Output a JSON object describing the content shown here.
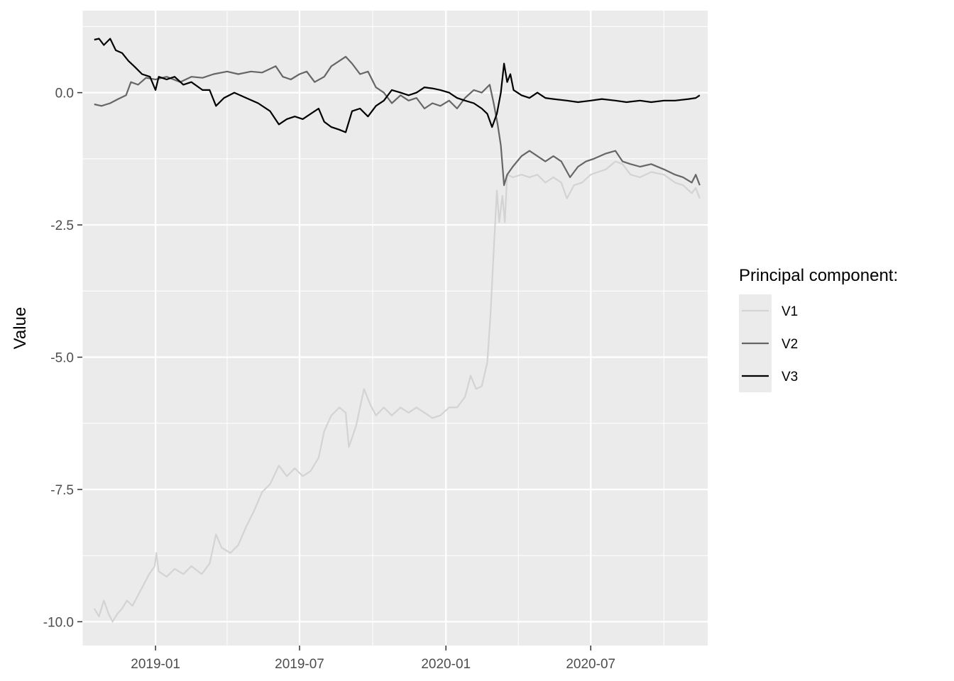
{
  "chart_data": {
    "type": "line",
    "xlabel": "",
    "ylabel": "Value",
    "x_range": [
      "2018-10-01",
      "2020-11-25"
    ],
    "ylim": [
      -10.45,
      1.55
    ],
    "x_ticks": [
      {
        "date": "2019-01-01",
        "label": "2019-01"
      },
      {
        "date": "2019-07-01",
        "label": "2019-07"
      },
      {
        "date": "2020-01-01",
        "label": "2020-01"
      },
      {
        "date": "2020-07-01",
        "label": "2020-07"
      }
    ],
    "x_minor_ticks": [
      "2018-10-01",
      "2019-04-01",
      "2019-10-01",
      "2020-04-01",
      "2020-10-01"
    ],
    "y_ticks": [
      {
        "value": 0,
        "label": "0.0"
      },
      {
        "value": -2.5,
        "label": "-2.5"
      },
      {
        "value": -5,
        "label": "-5.0"
      },
      {
        "value": -7.5,
        "label": "-7.5"
      },
      {
        "value": -10,
        "label": "-10.0"
      }
    ],
    "y_minor_ticks": [
      1.25,
      -1.25,
      -3.75,
      -6.25,
      -8.75
    ],
    "grid": true,
    "legend": {
      "title": "Principal component:",
      "position": "right"
    },
    "series": [
      {
        "name": "V1",
        "color": "#d3d3d3",
        "points": [
          [
            "2018-10-16",
            -9.75
          ],
          [
            "2018-10-22",
            -9.9
          ],
          [
            "2018-10-28",
            -9.6
          ],
          [
            "2018-11-03",
            -9.85
          ],
          [
            "2018-11-08",
            -10.0
          ],
          [
            "2018-11-14",
            -9.85
          ],
          [
            "2018-11-20",
            -9.75
          ],
          [
            "2018-11-26",
            -9.6
          ],
          [
            "2018-12-03",
            -9.7
          ],
          [
            "2018-12-10",
            -9.5
          ],
          [
            "2018-12-17",
            -9.3
          ],
          [
            "2018-12-24",
            -9.1
          ],
          [
            "2018-12-31",
            -8.95
          ],
          [
            "2019-01-02",
            -8.7
          ],
          [
            "2019-01-05",
            -9.05
          ],
          [
            "2019-01-15",
            -9.15
          ],
          [
            "2019-01-25",
            -9.0
          ],
          [
            "2019-02-05",
            -9.1
          ],
          [
            "2019-02-15",
            -8.95
          ],
          [
            "2019-02-28",
            -9.1
          ],
          [
            "2019-03-10",
            -8.9
          ],
          [
            "2019-03-18",
            -8.35
          ],
          [
            "2019-03-25",
            -8.6
          ],
          [
            "2019-04-05",
            -8.7
          ],
          [
            "2019-04-15",
            -8.55
          ],
          [
            "2019-04-25",
            -8.2
          ],
          [
            "2019-05-05",
            -7.9
          ],
          [
            "2019-05-15",
            -7.55
          ],
          [
            "2019-05-25",
            -7.4
          ],
          [
            "2019-06-05",
            -7.05
          ],
          [
            "2019-06-15",
            -7.25
          ],
          [
            "2019-06-25",
            -7.1
          ],
          [
            "2019-07-05",
            -7.25
          ],
          [
            "2019-07-15",
            -7.15
          ],
          [
            "2019-07-25",
            -6.9
          ],
          [
            "2019-08-01",
            -6.4
          ],
          [
            "2019-08-10",
            -6.1
          ],
          [
            "2019-08-20",
            -5.95
          ],
          [
            "2019-08-28",
            -6.05
          ],
          [
            "2019-09-01",
            -6.7
          ],
          [
            "2019-09-10",
            -6.3
          ],
          [
            "2019-09-20",
            -5.6
          ],
          [
            "2019-09-28",
            -5.9
          ],
          [
            "2019-10-05",
            -6.1
          ],
          [
            "2019-10-15",
            -5.95
          ],
          [
            "2019-10-25",
            -6.1
          ],
          [
            "2019-11-05",
            -5.95
          ],
          [
            "2019-11-15",
            -6.05
          ],
          [
            "2019-11-25",
            -5.95
          ],
          [
            "2019-12-05",
            -6.05
          ],
          [
            "2019-12-15",
            -6.15
          ],
          [
            "2019-12-25",
            -6.1
          ],
          [
            "2020-01-05",
            -5.95
          ],
          [
            "2020-01-15",
            -5.95
          ],
          [
            "2020-01-25",
            -5.75
          ],
          [
            "2020-02-01",
            -5.35
          ],
          [
            "2020-02-08",
            -5.6
          ],
          [
            "2020-02-15",
            -5.55
          ],
          [
            "2020-02-22",
            -5.1
          ],
          [
            "2020-02-26",
            -4.2
          ],
          [
            "2020-03-01",
            -3.0
          ],
          [
            "2020-03-05",
            -1.85
          ],
          [
            "2020-03-08",
            -2.45
          ],
          [
            "2020-03-12",
            -1.95
          ],
          [
            "2020-03-15",
            -2.45
          ],
          [
            "2020-03-18",
            -1.55
          ],
          [
            "2020-03-25",
            -1.6
          ],
          [
            "2020-04-05",
            -1.55
          ],
          [
            "2020-04-15",
            -1.6
          ],
          [
            "2020-04-25",
            -1.55
          ],
          [
            "2020-05-05",
            -1.7
          ],
          [
            "2020-05-15",
            -1.6
          ],
          [
            "2020-05-25",
            -1.7
          ],
          [
            "2020-06-01",
            -2.0
          ],
          [
            "2020-06-10",
            -1.75
          ],
          [
            "2020-06-20",
            -1.7
          ],
          [
            "2020-07-01",
            -1.55
          ],
          [
            "2020-07-10",
            -1.5
          ],
          [
            "2020-07-20",
            -1.45
          ],
          [
            "2020-08-01",
            -1.3
          ],
          [
            "2020-08-10",
            -1.35
          ],
          [
            "2020-08-20",
            -1.55
          ],
          [
            "2020-09-01",
            -1.6
          ],
          [
            "2020-09-15",
            -1.5
          ],
          [
            "2020-10-01",
            -1.55
          ],
          [
            "2020-10-15",
            -1.7
          ],
          [
            "2020-10-25",
            -1.75
          ],
          [
            "2020-11-05",
            -1.9
          ],
          [
            "2020-11-10",
            -1.8
          ],
          [
            "2020-11-15",
            -2.0
          ]
        ]
      },
      {
        "name": "V2",
        "color": "#666666",
        "points": [
          [
            "2018-10-16",
            -0.22
          ],
          [
            "2018-10-25",
            -0.25
          ],
          [
            "2018-11-05",
            -0.2
          ],
          [
            "2018-11-15",
            -0.12
          ],
          [
            "2018-11-25",
            -0.05
          ],
          [
            "2018-12-01",
            0.2
          ],
          [
            "2018-12-10",
            0.15
          ],
          [
            "2018-12-20",
            0.28
          ],
          [
            "2019-01-01",
            0.25
          ],
          [
            "2019-01-15",
            0.3
          ],
          [
            "2019-02-01",
            0.2
          ],
          [
            "2019-02-15",
            0.3
          ],
          [
            "2019-03-01",
            0.28
          ],
          [
            "2019-03-15",
            0.35
          ],
          [
            "2019-04-01",
            0.4
          ],
          [
            "2019-04-15",
            0.35
          ],
          [
            "2019-05-01",
            0.4
          ],
          [
            "2019-05-15",
            0.38
          ],
          [
            "2019-06-01",
            0.5
          ],
          [
            "2019-06-10",
            0.3
          ],
          [
            "2019-06-20",
            0.25
          ],
          [
            "2019-07-01",
            0.35
          ],
          [
            "2019-07-10",
            0.4
          ],
          [
            "2019-07-20",
            0.2
          ],
          [
            "2019-08-01",
            0.3
          ],
          [
            "2019-08-10",
            0.5
          ],
          [
            "2019-08-20",
            0.6
          ],
          [
            "2019-08-28",
            0.68
          ],
          [
            "2019-09-05",
            0.55
          ],
          [
            "2019-09-15",
            0.35
          ],
          [
            "2019-09-25",
            0.4
          ],
          [
            "2019-10-05",
            0.1
          ],
          [
            "2019-10-15",
            0.0
          ],
          [
            "2019-10-25",
            -0.2
          ],
          [
            "2019-11-05",
            -0.05
          ],
          [
            "2019-11-15",
            -0.15
          ],
          [
            "2019-11-25",
            -0.1
          ],
          [
            "2019-12-05",
            -0.3
          ],
          [
            "2019-12-15",
            -0.2
          ],
          [
            "2019-12-25",
            -0.25
          ],
          [
            "2020-01-05",
            -0.15
          ],
          [
            "2020-01-15",
            -0.3
          ],
          [
            "2020-01-25",
            -0.1
          ],
          [
            "2020-02-05",
            0.05
          ],
          [
            "2020-02-15",
            0.0
          ],
          [
            "2020-02-25",
            0.15
          ],
          [
            "2020-03-01",
            -0.2
          ],
          [
            "2020-03-06",
            -0.6
          ],
          [
            "2020-03-10",
            -1.0
          ],
          [
            "2020-03-14",
            -1.75
          ],
          [
            "2020-03-18",
            -1.55
          ],
          [
            "2020-03-25",
            -1.4
          ],
          [
            "2020-04-05",
            -1.2
          ],
          [
            "2020-04-15",
            -1.1
          ],
          [
            "2020-04-25",
            -1.2
          ],
          [
            "2020-05-05",
            -1.3
          ],
          [
            "2020-05-15",
            -1.2
          ],
          [
            "2020-05-25",
            -1.3
          ],
          [
            "2020-06-05",
            -1.6
          ],
          [
            "2020-06-15",
            -1.4
          ],
          [
            "2020-06-25",
            -1.3
          ],
          [
            "2020-07-05",
            -1.25
          ],
          [
            "2020-07-20",
            -1.15
          ],
          [
            "2020-08-01",
            -1.1
          ],
          [
            "2020-08-10",
            -1.3
          ],
          [
            "2020-08-20",
            -1.35
          ],
          [
            "2020-09-01",
            -1.4
          ],
          [
            "2020-09-15",
            -1.35
          ],
          [
            "2020-10-01",
            -1.45
          ],
          [
            "2020-10-15",
            -1.55
          ],
          [
            "2020-10-25",
            -1.6
          ],
          [
            "2020-11-05",
            -1.7
          ],
          [
            "2020-11-10",
            -1.55
          ],
          [
            "2020-11-15",
            -1.75
          ]
        ]
      },
      {
        "name": "V3",
        "color": "#000000",
        "points": [
          [
            "2018-10-16",
            1.0
          ],
          [
            "2018-10-22",
            1.02
          ],
          [
            "2018-10-28",
            0.9
          ],
          [
            "2018-11-05",
            1.02
          ],
          [
            "2018-11-12",
            0.8
          ],
          [
            "2018-11-20",
            0.75
          ],
          [
            "2018-11-28",
            0.6
          ],
          [
            "2018-12-05",
            0.5
          ],
          [
            "2018-12-15",
            0.35
          ],
          [
            "2018-12-25",
            0.3
          ],
          [
            "2019-01-01",
            0.05
          ],
          [
            "2019-01-05",
            0.3
          ],
          [
            "2019-01-15",
            0.25
          ],
          [
            "2019-01-25",
            0.3
          ],
          [
            "2019-02-05",
            0.15
          ],
          [
            "2019-02-15",
            0.2
          ],
          [
            "2019-03-01",
            0.05
          ],
          [
            "2019-03-10",
            0.05
          ],
          [
            "2019-03-18",
            -0.25
          ],
          [
            "2019-03-28",
            -0.1
          ],
          [
            "2019-04-10",
            0.0
          ],
          [
            "2019-04-25",
            -0.1
          ],
          [
            "2019-05-10",
            -0.2
          ],
          [
            "2019-05-25",
            -0.35
          ],
          [
            "2019-06-05",
            -0.6
          ],
          [
            "2019-06-15",
            -0.5
          ],
          [
            "2019-06-25",
            -0.45
          ],
          [
            "2019-07-05",
            -0.5
          ],
          [
            "2019-07-15",
            -0.4
          ],
          [
            "2019-07-25",
            -0.3
          ],
          [
            "2019-08-01",
            -0.55
          ],
          [
            "2019-08-10",
            -0.65
          ],
          [
            "2019-08-20",
            -0.7
          ],
          [
            "2019-08-28",
            -0.75
          ],
          [
            "2019-09-05",
            -0.35
          ],
          [
            "2019-09-15",
            -0.3
          ],
          [
            "2019-09-25",
            -0.45
          ],
          [
            "2019-10-05",
            -0.25
          ],
          [
            "2019-10-15",
            -0.15
          ],
          [
            "2019-10-25",
            0.05
          ],
          [
            "2019-11-05",
            0.0
          ],
          [
            "2019-11-15",
            -0.05
          ],
          [
            "2019-11-25",
            0.0
          ],
          [
            "2019-12-05",
            0.1
          ],
          [
            "2019-12-15",
            0.08
          ],
          [
            "2019-12-25",
            0.05
          ],
          [
            "2020-01-05",
            0.0
          ],
          [
            "2020-01-15",
            -0.1
          ],
          [
            "2020-01-25",
            -0.15
          ],
          [
            "2020-02-05",
            -0.2
          ],
          [
            "2020-02-15",
            -0.3
          ],
          [
            "2020-02-22",
            -0.4
          ],
          [
            "2020-02-28",
            -0.65
          ],
          [
            "2020-03-05",
            -0.4
          ],
          [
            "2020-03-10",
            0.0
          ],
          [
            "2020-03-14",
            0.55
          ],
          [
            "2020-03-18",
            0.2
          ],
          [
            "2020-03-22",
            0.35
          ],
          [
            "2020-03-26",
            0.05
          ],
          [
            "2020-04-05",
            -0.05
          ],
          [
            "2020-04-15",
            -0.1
          ],
          [
            "2020-04-25",
            0.0
          ],
          [
            "2020-05-05",
            -0.1
          ],
          [
            "2020-05-15",
            -0.12
          ],
          [
            "2020-06-01",
            -0.15
          ],
          [
            "2020-06-15",
            -0.18
          ],
          [
            "2020-07-01",
            -0.15
          ],
          [
            "2020-07-15",
            -0.12
          ],
          [
            "2020-08-01",
            -0.15
          ],
          [
            "2020-08-15",
            -0.18
          ],
          [
            "2020-09-01",
            -0.15
          ],
          [
            "2020-09-15",
            -0.18
          ],
          [
            "2020-10-01",
            -0.15
          ],
          [
            "2020-10-15",
            -0.15
          ],
          [
            "2020-11-01",
            -0.12
          ],
          [
            "2020-11-10",
            -0.1
          ],
          [
            "2020-11-15",
            -0.05
          ]
        ]
      }
    ]
  }
}
